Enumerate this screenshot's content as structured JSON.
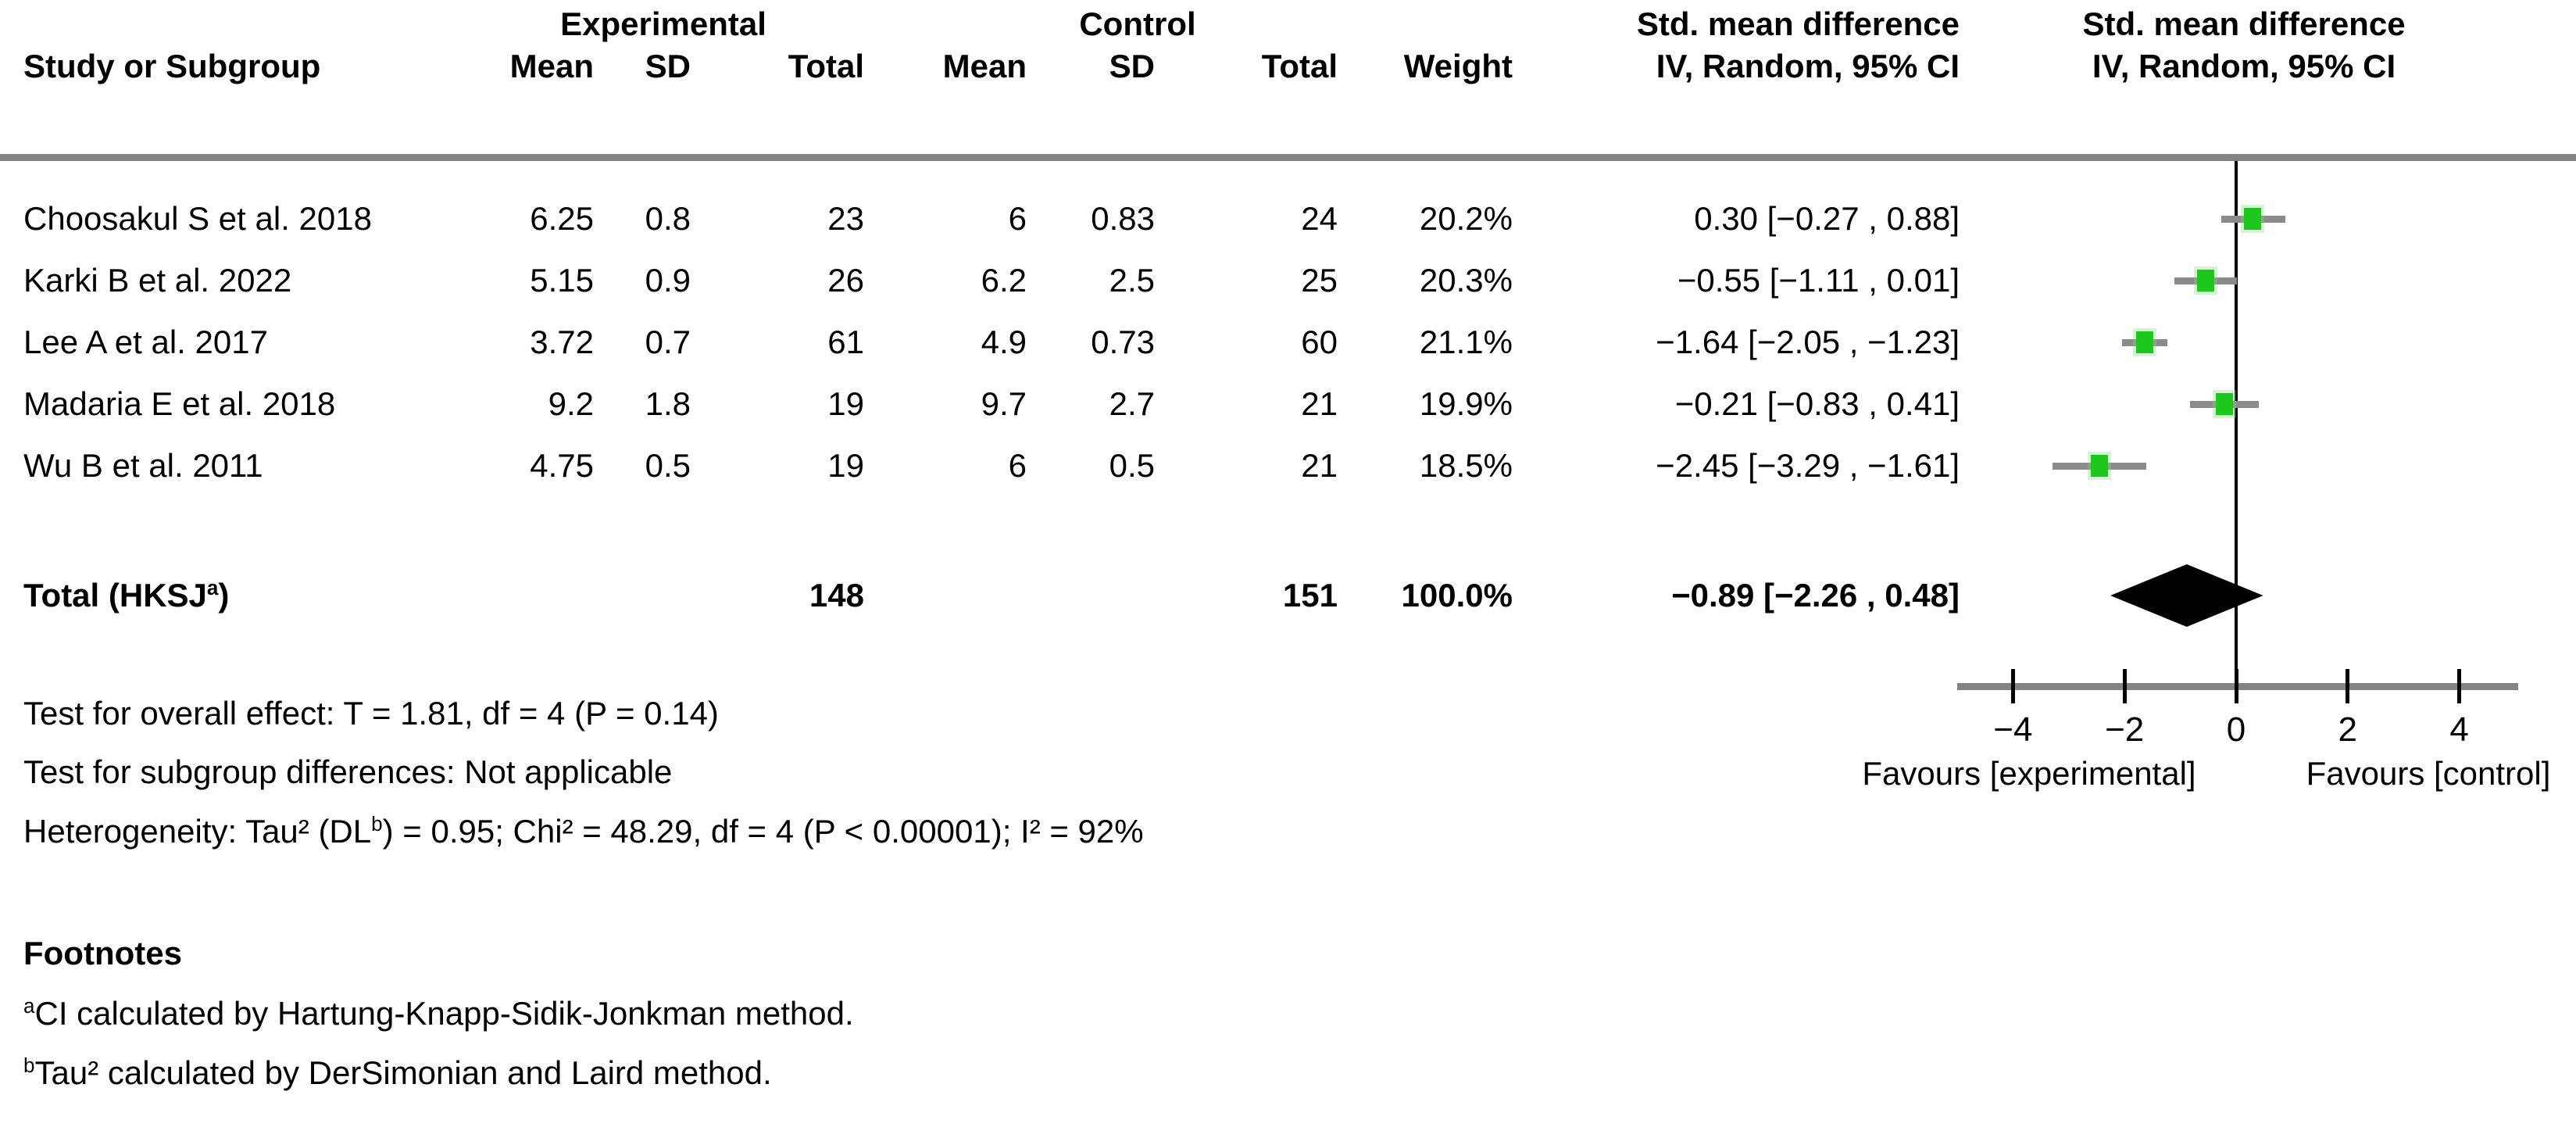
{
  "header": {
    "study_col": "Study or Subgroup",
    "experimental": "Experimental",
    "control": "Control",
    "mean": "Mean",
    "sd": "SD",
    "total": "Total",
    "weight": "Weight",
    "smd": "Std. mean difference",
    "iv_random": "IV, Random, 95% CI"
  },
  "stats": {
    "overall_effect": "Test for overall effect: T = 1.81, df = 4 (P = 0.14)",
    "subgroup": "Test for subgroup differences: Not applicable",
    "heterogeneity_prefix": "Heterogeneity: Tau² (DL",
    "heterogeneity_sup": "b",
    "heterogeneity_suffix": ") = 0.95; Chi² = 48.29, df = 4 (P < 0.00001); I² = 92%"
  },
  "footnotes": {
    "title": "Footnotes",
    "items": [
      {
        "sup": "a",
        "text": "CI calculated by Hartung-Knapp-Sidik-Jonkman method."
      },
      {
        "sup": "b",
        "text": "Tau² calculated by DerSimonian and Laird method."
      }
    ]
  },
  "chart_data": {
    "type": "forest",
    "effect_measure": "Std. mean difference",
    "model": "IV, Random, 95% CI",
    "studies": [
      {
        "name": "Choosakul S et al. 2018",
        "exp_mean": "6.25",
        "exp_sd": "0.8",
        "exp_total": "23",
        "ctrl_mean": "6",
        "ctrl_sd": "0.83",
        "ctrl_total": "24",
        "weight": "20.2%",
        "est": 0.3,
        "lo": -0.27,
        "hi": 0.88,
        "ci_text": "0.30 [−0.27 , 0.88]"
      },
      {
        "name": "Karki B et al. 2022",
        "exp_mean": "5.15",
        "exp_sd": "0.9",
        "exp_total": "26",
        "ctrl_mean": "6.2",
        "ctrl_sd": "2.5",
        "ctrl_total": "25",
        "weight": "20.3%",
        "est": -0.55,
        "lo": -1.11,
        "hi": 0.01,
        "ci_text": "−0.55 [−1.11 , 0.01]"
      },
      {
        "name": "Lee A et al. 2017",
        "exp_mean": "3.72",
        "exp_sd": "0.7",
        "exp_total": "61",
        "ctrl_mean": "4.9",
        "ctrl_sd": "0.73",
        "ctrl_total": "60",
        "weight": "21.1%",
        "est": -1.64,
        "lo": -2.05,
        "hi": -1.23,
        "ci_text": "−1.64 [−2.05 , −1.23]"
      },
      {
        "name": "Madaria E et al. 2018",
        "exp_mean": "9.2",
        "exp_sd": "1.8",
        "exp_total": "19",
        "ctrl_mean": "9.7",
        "ctrl_sd": "2.7",
        "ctrl_total": "21",
        "weight": "19.9%",
        "est": -0.21,
        "lo": -0.83,
        "hi": 0.41,
        "ci_text": "−0.21 [−0.83 , 0.41]"
      },
      {
        "name": "Wu B et al. 2011",
        "exp_mean": "4.75",
        "exp_sd": "0.5",
        "exp_total": "19",
        "ctrl_mean": "6",
        "ctrl_sd": "0.5",
        "ctrl_total": "21",
        "weight": "18.5%",
        "est": -2.45,
        "lo": -3.29,
        "hi": -1.61,
        "ci_text": "−2.45 [−3.29 , −1.61]"
      }
    ],
    "total": {
      "label_prefix": "Total (HKSJ",
      "label_sup": "a",
      "label_suffix": ")",
      "exp_total": "148",
      "ctrl_total": "151",
      "weight": "100.0%",
      "est": -0.89,
      "lo": -2.26,
      "hi": 0.48,
      "ci_text": "−0.89 [−2.26 , 0.48]"
    },
    "axis": {
      "min": -5,
      "max": 5.05,
      "ticks": [
        {
          "value": -4,
          "label": "−4"
        },
        {
          "value": -2,
          "label": "−2"
        },
        {
          "value": 0,
          "label": "0"
        },
        {
          "value": 2,
          "label": "2"
        },
        {
          "value": 4,
          "label": "4"
        }
      ],
      "favours_left": "Favours [experimental]",
      "favours_right": "Favours [control]"
    },
    "colors": {
      "marker_green": "#1EC71E",
      "marker_halo": "#7FDF7F",
      "ci_gray": "#8A8A8A",
      "rule_gray": "#848484",
      "diamond_black": "#000000"
    }
  }
}
